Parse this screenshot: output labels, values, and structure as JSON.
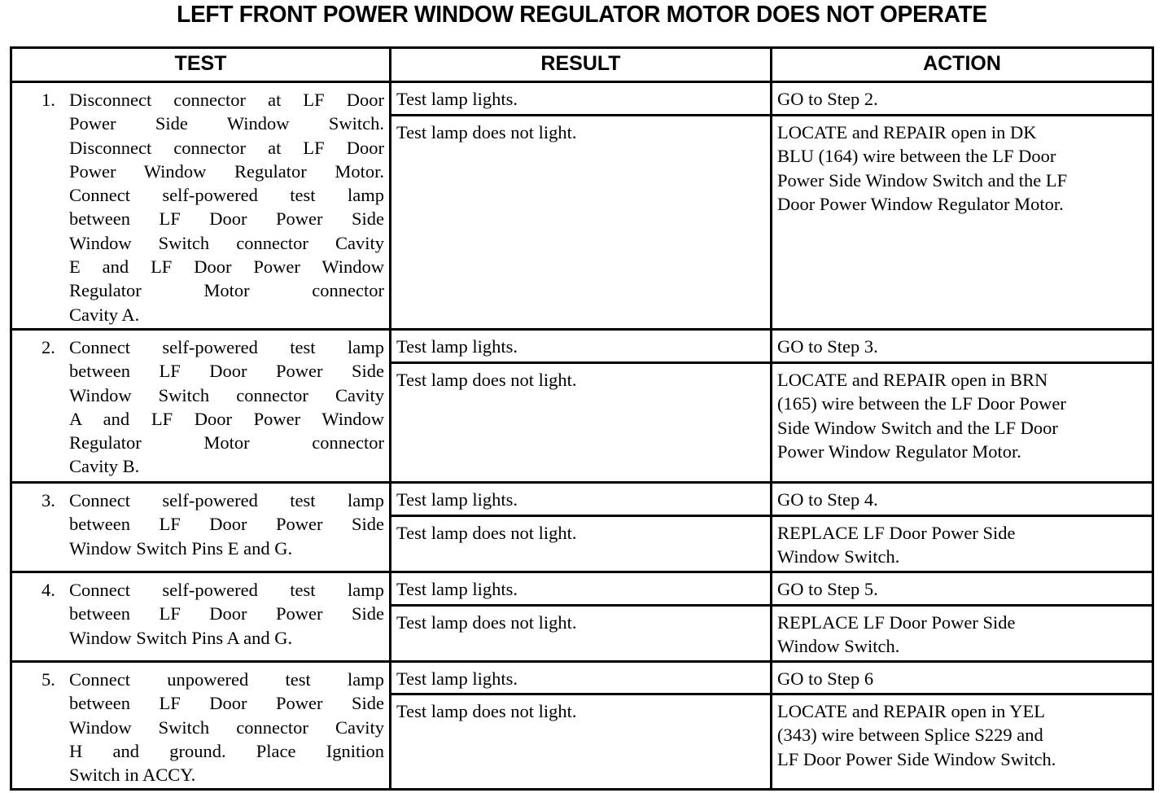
{
  "title": "LEFT FRONT POWER WINDOW REGULATOR MOTOR DOES NOT OPERATE",
  "headers": {
    "test": "TEST",
    "result": "RESULT",
    "action": "ACTION"
  },
  "steps": [
    {
      "num": "1.",
      "test": [
        "Disconnect connector at LF Door",
        "Power Side Window Switch.",
        "Disconnect connector at LF Door",
        "Power Window Regulator Motor.",
        "Connect self-powered test lamp",
        "between LF Door Power Side",
        "Window Switch connector Cavity",
        "E and LF Door Power Window",
        "Regulator Motor connector",
        "Cavity A."
      ],
      "result1": "Test lamp lights.",
      "action1": [
        "GO to Step 2."
      ],
      "result2": "Test lamp does not light.",
      "action2": [
        "LOCATE and REPAIR open in DK",
        "BLU (164) wire between the LF Door",
        "Power Side Window Switch and the LF",
        "Door Power Window Regulator Motor."
      ]
    },
    {
      "num": "2.",
      "test": [
        "Connect self-powered test lamp",
        "between LF Door Power Side",
        "Window Switch connector Cavity",
        "A and LF Door Power Window",
        "Regulator Motor connector",
        "Cavity B."
      ],
      "result1": "Test lamp lights.",
      "action1": [
        "GO to Step 3."
      ],
      "result2": "Test lamp does not light.",
      "action2": [
        "LOCATE and REPAIR open in BRN",
        "(165) wire between the LF Door Power",
        "Side Window Switch and the LF Door",
        "Power Window Regulator Motor."
      ]
    },
    {
      "num": "3.",
      "test": [
        "Connect self-powered test lamp",
        "between LF Door Power Side",
        "Window Switch Pins E and G."
      ],
      "result1": "Test lamp lights.",
      "action1": [
        "GO to Step 4."
      ],
      "result2": "Test lamp does not light.",
      "action2": [
        "REPLACE LF Door Power Side",
        "Window Switch."
      ]
    },
    {
      "num": "4.",
      "test": [
        "Connect self-powered test lamp",
        "between LF Door Power Side",
        "Window Switch Pins A and G."
      ],
      "result1": "Test lamp lights.",
      "action1": [
        "GO to Step 5."
      ],
      "result2": "Test lamp does not light.",
      "action2": [
        "REPLACE LF Door Power Side",
        "Window Switch."
      ]
    },
    {
      "num": "5.",
      "test": [
        "Connect unpowered test lamp",
        "between LF Door Power Side",
        "Window Switch connector Cavity",
        "H and ground. Place Ignition",
        "Switch in ACCY."
      ],
      "result1": "Test lamp lights.",
      "action1": [
        "GO to Step 6"
      ],
      "result2": "Test lamp does not light.",
      "action2": [
        "LOCATE and REPAIR open in YEL",
        "(343) wire between Splice S229 and",
        "LF Door Power Side Window Switch."
      ]
    }
  ]
}
